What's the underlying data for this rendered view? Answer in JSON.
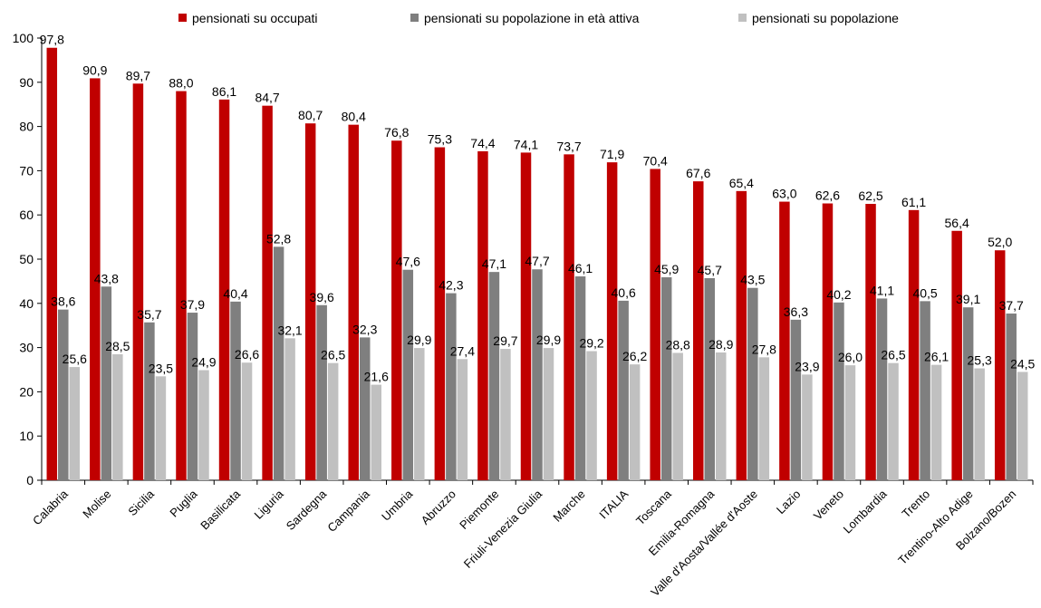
{
  "chart_data": {
    "type": "bar",
    "title": "",
    "xlabel": "",
    "ylabel": "",
    "ylim": [
      0,
      100
    ],
    "yticks": [
      0,
      10,
      20,
      30,
      40,
      50,
      60,
      70,
      80,
      90,
      100
    ],
    "grid": false,
    "legend_position": "top",
    "categories": [
      "Calabria",
      "Molise",
      "Sicilia",
      "Puglia",
      "Basilicata",
      "Liguria",
      "Sardegna",
      "Campania",
      "Umbria",
      "Abruzzo",
      "Piemonte",
      "Friuli-Venezia Giulia",
      "Marche",
      "ITALIA",
      "Toscana",
      "Emilia-Romagna",
      "Valle d'Aosta/Vallée d'Aoste",
      "Lazio",
      "Veneto",
      "Lombardia",
      "Trento",
      "Trentino-Alto Adige",
      "Bolzano/Bozen"
    ],
    "series": [
      {
        "name": "pensionati su occupati",
        "color": "#c00000",
        "values": [
          97.8,
          90.9,
          89.7,
          88.0,
          86.1,
          84.7,
          80.7,
          80.4,
          76.8,
          75.3,
          74.4,
          74.1,
          73.7,
          71.9,
          70.4,
          67.6,
          65.4,
          63.0,
          62.6,
          62.5,
          61.1,
          56.4,
          52.0
        ],
        "labels": [
          "97,8",
          "90,9",
          "89,7",
          "88,0",
          "86,1",
          "84,7",
          "80,7",
          "80,4",
          "76,8",
          "75,3",
          "74,4",
          "74,1",
          "73,7",
          "71,9",
          "70,4",
          "67,6",
          "65,4",
          "63,0",
          "62,6",
          "62,5",
          "61,1",
          "56,4",
          "52,0"
        ]
      },
      {
        "name": "pensionati su popolazione in età attiva",
        "color": "#7f7f7f",
        "values": [
          38.6,
          43.8,
          35.7,
          37.9,
          40.4,
          52.8,
          39.6,
          32.3,
          47.6,
          42.3,
          47.1,
          47.7,
          46.1,
          40.6,
          45.9,
          45.7,
          43.5,
          36.3,
          40.2,
          41.1,
          40.5,
          39.1,
          37.7
        ],
        "labels": [
          "38,6",
          "43,8",
          "35,7",
          "37,9",
          "40,4",
          "52,8",
          "39,6",
          "32,3",
          "47,6",
          "42,3",
          "47,1",
          "47,7",
          "46,1",
          "40,6",
          "45,9",
          "45,7",
          "43,5",
          "36,3",
          "40,2",
          "41,1",
          "40,5",
          "39,1",
          "37,7"
        ]
      },
      {
        "name": "pensionati su popolazione",
        "color": "#c0c0c0",
        "values": [
          25.6,
          28.5,
          23.5,
          24.9,
          26.6,
          32.1,
          26.5,
          21.6,
          29.9,
          27.4,
          29.7,
          29.9,
          29.2,
          26.2,
          28.8,
          28.9,
          27.8,
          23.9,
          26.0,
          26.5,
          26.1,
          25.3,
          24.5
        ],
        "labels": [
          "25,6",
          "28,5",
          "23,5",
          "24,9",
          "26,6",
          "32,1",
          "26,5",
          "21,6",
          "29,9",
          "27,4",
          "29,7",
          "29,9",
          "29,2",
          "26,2",
          "28,8",
          "28,9",
          "27,8",
          "23,9",
          "26,0",
          "26,5",
          "26,1",
          "25,3",
          "24,5"
        ]
      }
    ]
  }
}
